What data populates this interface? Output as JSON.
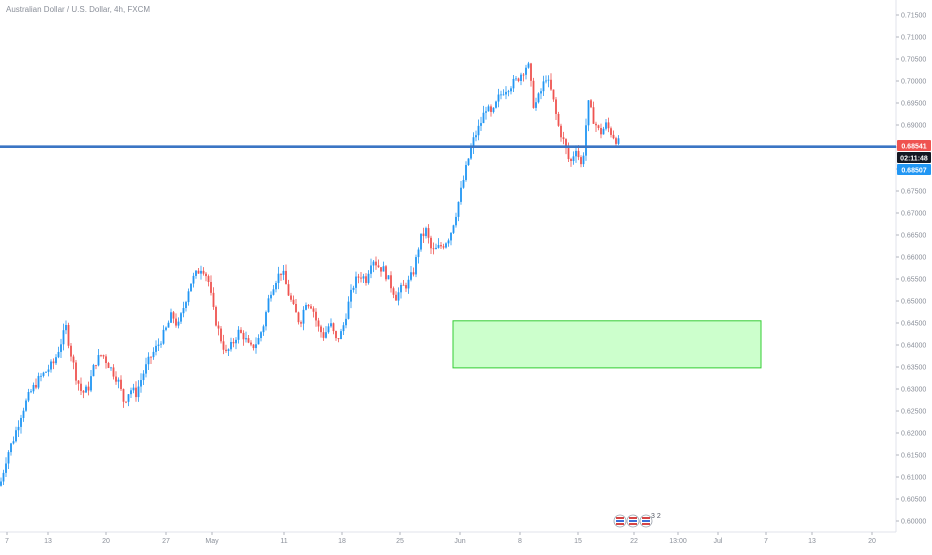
{
  "header": {
    "title": "Australian Dollar / U.S. Dollar, 4h, FXCM"
  },
  "price_scale": {
    "last_price": "0.68541",
    "countdown": "02:11:48",
    "line_price": "0.68507",
    "last_color": "#ef5350",
    "line_color": "#2196f3",
    "countdown_color": "#131722"
  },
  "events": {
    "flag_count": "3 2"
  },
  "colors": {
    "up": "#2196f3",
    "down": "#ef5350",
    "zone_fill": "#ccffcc",
    "zone_border": "#33cc33",
    "hline": "#3a75c4"
  },
  "chart_data": {
    "type": "candlestick",
    "ylim": [
      0.598,
      0.7175
    ],
    "y_ticks": [
      "0.71500",
      "0.71000",
      "0.70500",
      "0.70000",
      "0.69500",
      "0.69000",
      "0.68500",
      "0.68000",
      "0.67500",
      "0.67000",
      "0.66500",
      "0.66000",
      "0.65500",
      "0.65000",
      "0.64500",
      "0.64000",
      "0.63500",
      "0.63000",
      "0.62500",
      "0.62000",
      "0.61500",
      "0.61000",
      "0.60500",
      "0.60000"
    ],
    "x_ticks": [
      "7",
      "13",
      "20",
      "27",
      "May",
      "11",
      "18",
      "25",
      "Jun",
      "8",
      "15",
      "22",
      "13:00",
      "Jul",
      "7",
      "13",
      "20"
    ],
    "close_path": [
      [
        0,
        0.608
      ],
      [
        7,
        0.615
      ],
      [
        14,
        0.619
      ],
      [
        22,
        0.625
      ],
      [
        30,
        0.629
      ],
      [
        38,
        0.632
      ],
      [
        46,
        0.634
      ],
      [
        54,
        0.636
      ],
      [
        60,
        0.64
      ],
      [
        66,
        0.644
      ],
      [
        70,
        0.639
      ],
      [
        76,
        0.633
      ],
      [
        82,
        0.629
      ],
      [
        88,
        0.63
      ],
      [
        95,
        0.636
      ],
      [
        102,
        0.638
      ],
      [
        110,
        0.635
      ],
      [
        118,
        0.632
      ],
      [
        124,
        0.627
      ],
      [
        130,
        0.63
      ],
      [
        136,
        0.629
      ],
      [
        144,
        0.634
      ],
      [
        150,
        0.637
      ],
      [
        158,
        0.64
      ],
      [
        165,
        0.643
      ],
      [
        172,
        0.647
      ],
      [
        178,
        0.644
      ],
      [
        184,
        0.649
      ],
      [
        190,
        0.654
      ],
      [
        196,
        0.656
      ],
      [
        202,
        0.658
      ],
      [
        208,
        0.655
      ],
      [
        214,
        0.647
      ],
      [
        220,
        0.642
      ],
      [
        226,
        0.638
      ],
      [
        232,
        0.64
      ],
      [
        238,
        0.643
      ],
      [
        244,
        0.642
      ],
      [
        250,
        0.639
      ],
      [
        258,
        0.641
      ],
      [
        264,
        0.645
      ],
      [
        270,
        0.652
      ],
      [
        276,
        0.655
      ],
      [
        282,
        0.657
      ],
      [
        288,
        0.652
      ],
      [
        294,
        0.648
      ],
      [
        300,
        0.645
      ],
      [
        306,
        0.65
      ],
      [
        312,
        0.649
      ],
      [
        318,
        0.644
      ],
      [
        324,
        0.642
      ],
      [
        330,
        0.645
      ],
      [
        336,
        0.641
      ],
      [
        342,
        0.643
      ],
      [
        348,
        0.649
      ],
      [
        354,
        0.654
      ],
      [
        360,
        0.656
      ],
      [
        366,
        0.655
      ],
      [
        372,
        0.66
      ],
      [
        378,
        0.658
      ],
      [
        384,
        0.657
      ],
      [
        390,
        0.654
      ],
      [
        396,
        0.651
      ],
      [
        402,
        0.653
      ],
      [
        408,
        0.654
      ],
      [
        414,
        0.657
      ],
      [
        420,
        0.664
      ],
      [
        426,
        0.666
      ],
      [
        432,
        0.661
      ],
      [
        438,
        0.662
      ],
      [
        444,
        0.663
      ],
      [
        450,
        0.665
      ],
      [
        456,
        0.67
      ],
      [
        462,
        0.676
      ],
      [
        468,
        0.682
      ],
      [
        474,
        0.687
      ],
      [
        480,
        0.69
      ],
      [
        486,
        0.694
      ],
      [
        492,
        0.692
      ],
      [
        498,
        0.696
      ],
      [
        504,
        0.698
      ],
      [
        510,
        0.699
      ],
      [
        516,
        0.7
      ],
      [
        522,
        0.702
      ],
      [
        528,
        0.704
      ],
      [
        534,
        0.694
      ],
      [
        540,
        0.697
      ],
      [
        546,
        0.701
      ],
      [
        552,
        0.697
      ],
      [
        558,
        0.69
      ],
      [
        564,
        0.686
      ],
      [
        570,
        0.681
      ],
      [
        576,
        0.685
      ],
      [
        582,
        0.68
      ],
      [
        588,
        0.695
      ],
      [
        594,
        0.691
      ],
      [
        600,
        0.688
      ],
      [
        606,
        0.69
      ],
      [
        612,
        0.688
      ],
      [
        620,
        0.6855
      ]
    ],
    "horizontal_line": 0.68507,
    "zone": {
      "x_start": "Jun 1",
      "x_end": "Jul 7",
      "top": 0.6455,
      "bottom": 0.6348
    }
  }
}
